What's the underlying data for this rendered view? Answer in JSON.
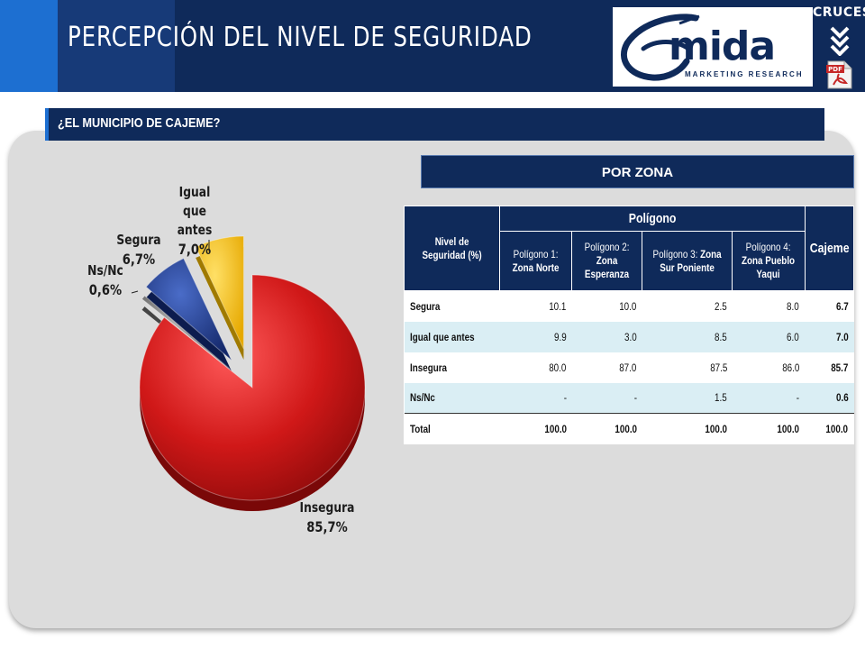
{
  "header": {
    "title": "PERCEPCIÓN DEL NIVEL DE SEGURIDAD",
    "logo_text": "mida",
    "logo_subtext": "MARKETING RESEARCH",
    "cruces_label": "CRUCES"
  },
  "question": {
    "text": "¿EL MUNICIPIO DE CAJEME?"
  },
  "zone_tab": {
    "label": "POR ZONA"
  },
  "colors": {
    "header_bg": "#0f2a5a",
    "accent": "#1d6fd1",
    "insegura": "#d01818",
    "segura": "#1f3a8a",
    "igual": "#ffc000",
    "nsnc": "#7f7f7f",
    "table_alt_row": "#daeef4"
  },
  "pie_labels": {
    "igual_name": "Igual que antes",
    "igual_pct": "7,0%",
    "segura_name": "Segura",
    "segura_pct": "6,7%",
    "nsnc_name": "Ns/Nc",
    "nsnc_pct": "0,6%",
    "insegura_name": "Insegura",
    "insegura_pct": "85,7%"
  },
  "table": {
    "header_nivel": "Nivel de Seguridad (%)",
    "header_poligono": "Polígono",
    "header_cajeme": "Cajeme",
    "columns": [
      {
        "prefix": "Polígono 1:",
        "zone": "Zona Norte"
      },
      {
        "prefix": "Polígono 2:",
        "zone": "Zona Esperanza"
      },
      {
        "prefix": "Polígono 3:",
        "zone": "Zona Sur Poniente"
      },
      {
        "prefix": "Polígono 4:",
        "zone": "Zona Pueblo Yaqui"
      }
    ],
    "rows": [
      {
        "label": "Segura",
        "values": [
          "10.1",
          "10.0",
          "2.5",
          "8.0"
        ],
        "cajeme": "6.7"
      },
      {
        "label": "Igual que antes",
        "values": [
          "9.9",
          "3.0",
          "8.5",
          "6.0"
        ],
        "cajeme": "7.0"
      },
      {
        "label": "Insegura",
        "values": [
          "80.0",
          "87.0",
          "87.5",
          "86.0"
        ],
        "cajeme": "85.7"
      },
      {
        "label": "Ns/Nc",
        "values": [
          "-",
          "-",
          "1.5",
          "-"
        ],
        "cajeme": "0.6"
      },
      {
        "label": "Total",
        "values": [
          "100.0",
          "100.0",
          "100.0",
          "100.0"
        ],
        "cajeme": "100.0"
      }
    ]
  },
  "chart_data": {
    "type": "pie",
    "title": "",
    "categories": [
      "Insegura",
      "Ns/Nc",
      "Segura",
      "Igual que antes"
    ],
    "values": [
      85.7,
      0.6,
      6.7,
      7.0
    ],
    "exploded": true,
    "colors": [
      "#d01818",
      "#7f7f7f",
      "#1f3a8a",
      "#ffc000"
    ]
  }
}
